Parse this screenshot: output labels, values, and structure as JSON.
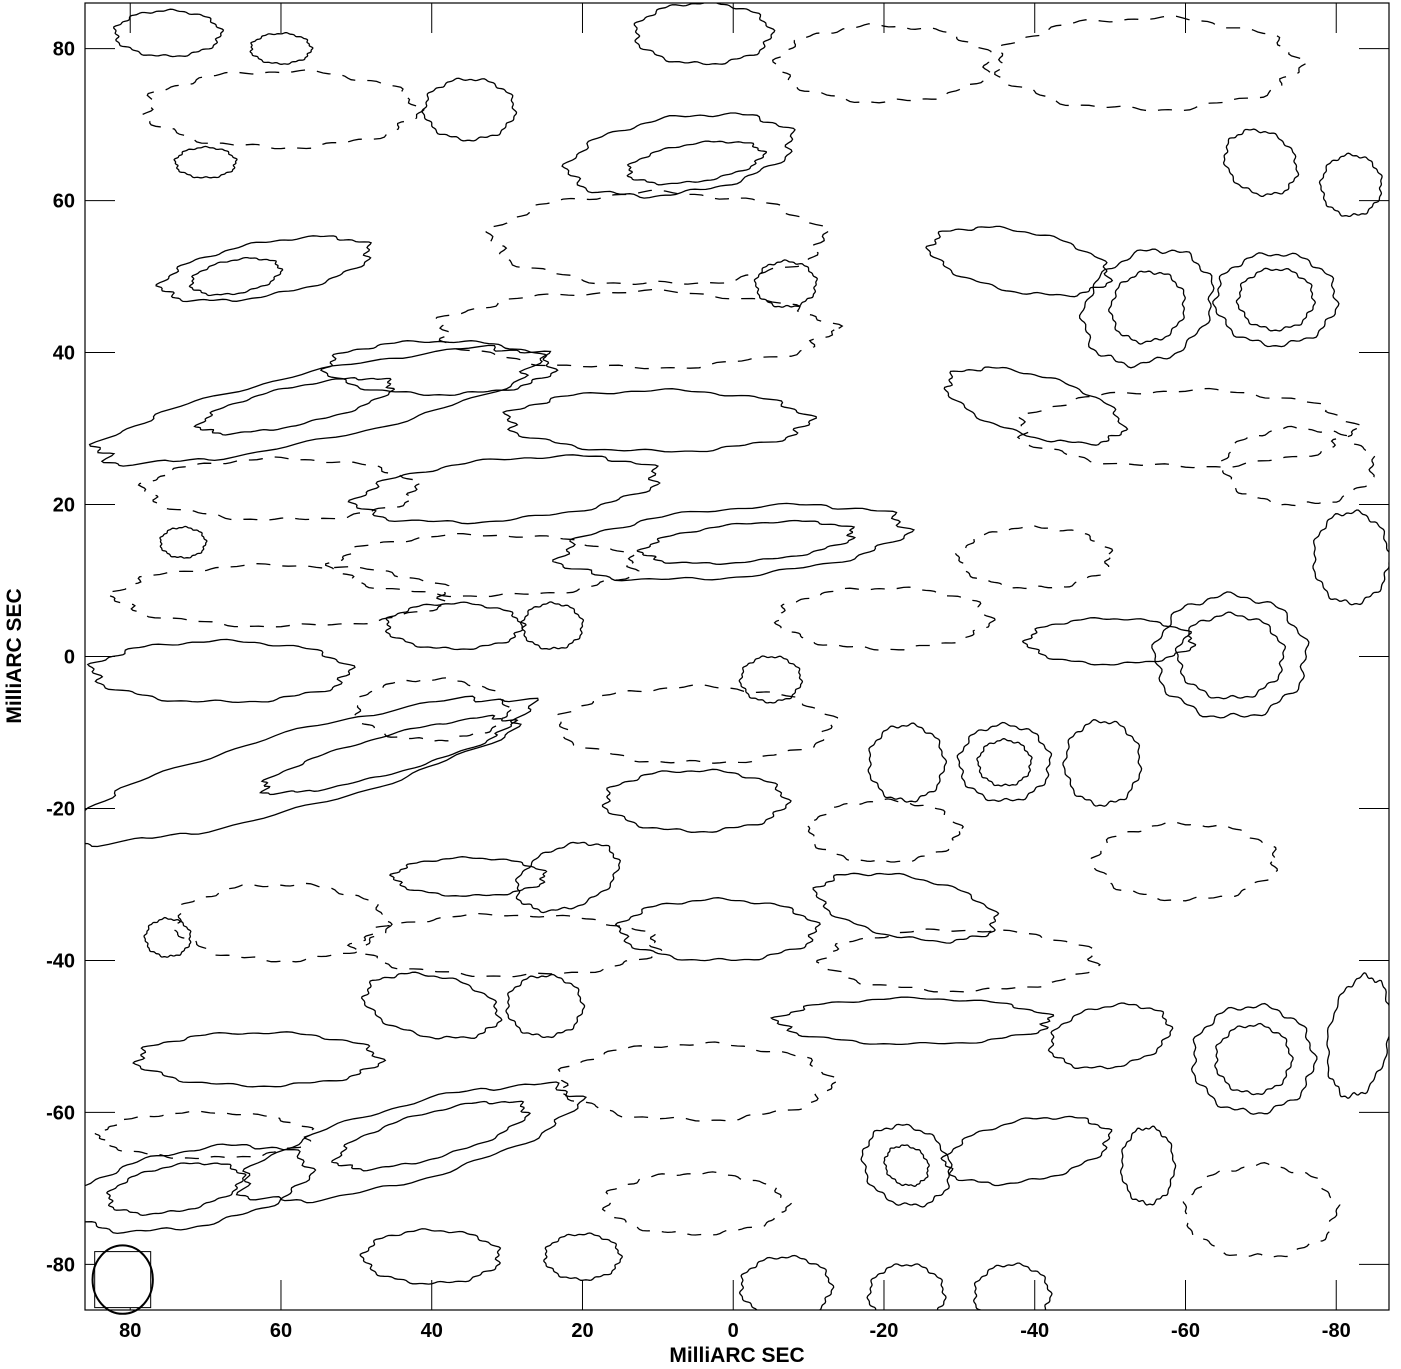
{
  "chart_data": {
    "type": "contour",
    "title": "",
    "xlabel": "MilliARC SEC",
    "ylabel": "MilliARC SEC",
    "xlim": [
      86,
      -87
    ],
    "ylim": [
      -86,
      86
    ],
    "x_reversed": true,
    "xticks": [
      80,
      60,
      40,
      20,
      0,
      -20,
      -40,
      -60,
      -80
    ],
    "yticks": [
      80,
      60,
      40,
      20,
      0,
      -20,
      -40,
      -60,
      -80
    ],
    "line_color": "#000000",
    "negative_contours_dashed": true,
    "beam": {
      "x": 81,
      "y": -82,
      "major": 4.5,
      "minor": 4.0,
      "pa_deg": 0
    },
    "contours": [
      {
        "level": "positive_low",
        "cx": 62,
        "cy": 51,
        "rx": 14,
        "ry": 3.5,
        "rot": -10
      },
      {
        "level": "positive_high",
        "cx": 66,
        "cy": 50,
        "rx": 6,
        "ry": 2.2,
        "rot": -10
      },
      {
        "level": "positive_low",
        "cx": 55,
        "cy": 33,
        "rx": 30,
        "ry": 4.5,
        "rot": -12
      },
      {
        "level": "positive_high",
        "cx": 58,
        "cy": 33,
        "rx": 13,
        "ry": 2.5,
        "rot": -12
      },
      {
        "level": "positive_low",
        "cx": 39,
        "cy": 38,
        "rx": 15,
        "ry": 3.5,
        "rot": 0
      },
      {
        "level": "positive_low",
        "cx": 75,
        "cy": 82,
        "rx": 7,
        "ry": 3,
        "rot": 0
      },
      {
        "level": "positive_low",
        "cx": 35,
        "cy": 72,
        "rx": 6,
        "ry": 4,
        "rot": 0
      },
      {
        "level": "positive_low",
        "cx": 70,
        "cy": 65,
        "rx": 4,
        "ry": 2,
        "rot": 0
      },
      {
        "level": "positive_low",
        "cx": 7,
        "cy": 66,
        "rx": 15,
        "ry": 5,
        "rot": -8
      },
      {
        "level": "positive_high",
        "cx": 5,
        "cy": 65,
        "rx": 9,
        "ry": 2.5,
        "rot": -8
      },
      {
        "level": "positive_low",
        "cx": 4,
        "cy": 82,
        "rx": 9,
        "ry": 4,
        "rot": 0
      },
      {
        "level": "positive_low",
        "cx": -7,
        "cy": 49,
        "rx": 4,
        "ry": 3,
        "rot": 0
      },
      {
        "level": "positive_low",
        "cx": 10,
        "cy": 31,
        "rx": 20,
        "ry": 4,
        "rot": 0
      },
      {
        "level": "positive_low",
        "cx": 30,
        "cy": 22,
        "rx": 20,
        "ry": 4,
        "rot": -5
      },
      {
        "level": "positive_low",
        "cx": 0,
        "cy": 15,
        "rx": 23,
        "ry": 4.5,
        "rot": -5
      },
      {
        "level": "positive_high",
        "cx": -2,
        "cy": 15,
        "rx": 14,
        "ry": 2.5,
        "rot": -5
      },
      {
        "level": "positive_low",
        "cx": 37,
        "cy": 4,
        "rx": 9,
        "ry": 3,
        "rot": 0
      },
      {
        "level": "positive_low",
        "cx": 24,
        "cy": 4,
        "rx": 4,
        "ry": 3,
        "rot": 0
      },
      {
        "level": "positive_low",
        "cx": 68,
        "cy": -2,
        "rx": 17,
        "ry": 4,
        "rot": 0
      },
      {
        "level": "positive_low",
        "cx": 58,
        "cy": -15,
        "rx": 32,
        "ry": 5,
        "rot": -15
      },
      {
        "level": "positive_high",
        "cx": 46,
        "cy": -13,
        "rx": 17,
        "ry": 2.5,
        "rot": -15
      },
      {
        "level": "positive_low",
        "cx": 5,
        "cy": -19,
        "rx": 12,
        "ry": 4,
        "rot": 0
      },
      {
        "level": "positive_low",
        "cx": -5,
        "cy": -3,
        "rx": 4,
        "ry": 3,
        "rot": 0
      },
      {
        "level": "positive_low",
        "cx": -23,
        "cy": -14,
        "rx": 5,
        "ry": 5,
        "rot": 0
      },
      {
        "level": "positive_low",
        "cx": -36,
        "cy": -14,
        "rx": 6,
        "ry": 5,
        "rot": 0
      },
      {
        "level": "positive_high",
        "cx": -36,
        "cy": -14,
        "rx": 3.5,
        "ry": 3,
        "rot": 0
      },
      {
        "level": "positive_low",
        "cx": -49,
        "cy": -14,
        "rx": 5,
        "ry": 5.5,
        "rot": 0
      },
      {
        "level": "positive_low",
        "cx": -66,
        "cy": 0,
        "rx": 10,
        "ry": 8,
        "rot": 0
      },
      {
        "level": "positive_high",
        "cx": -66,
        "cy": 0,
        "rx": 7,
        "ry": 5.5,
        "rot": 0
      },
      {
        "level": "positive_low",
        "cx": -50,
        "cy": 2,
        "rx": 11,
        "ry": 3,
        "rot": 0
      },
      {
        "level": "positive_low",
        "cx": -82,
        "cy": 13,
        "rx": 5,
        "ry": 6,
        "rot": 0
      },
      {
        "level": "positive_low",
        "cx": -38,
        "cy": 52,
        "rx": 12,
        "ry": 4,
        "rot": 10
      },
      {
        "level": "positive_low",
        "cx": -55,
        "cy": 46,
        "rx": 9,
        "ry": 7,
        "rot": -30
      },
      {
        "level": "positive_high",
        "cx": -55,
        "cy": 46,
        "rx": 5,
        "ry": 4.5,
        "rot": -30
      },
      {
        "level": "positive_low",
        "cx": -72,
        "cy": 47,
        "rx": 8,
        "ry": 6,
        "rot": 0
      },
      {
        "level": "positive_high",
        "cx": -72,
        "cy": 47,
        "rx": 5,
        "ry": 4,
        "rot": 0
      },
      {
        "level": "positive_low",
        "cx": -70,
        "cy": 65,
        "rx": 5,
        "ry": 4,
        "rot": 30
      },
      {
        "level": "positive_low",
        "cx": -40,
        "cy": 33,
        "rx": 12,
        "ry": 4,
        "rot": 15
      },
      {
        "level": "positive_low",
        "cx": 35,
        "cy": -29,
        "rx": 10,
        "ry": 2.5,
        "rot": 0
      },
      {
        "level": "positive_low",
        "cx": 22,
        "cy": -29,
        "rx": 7,
        "ry": 4,
        "rot": -20
      },
      {
        "level": "positive_low",
        "cx": 2,
        "cy": -36,
        "rx": 13,
        "ry": 4,
        "rot": 0
      },
      {
        "level": "positive_low",
        "cx": -23,
        "cy": -33,
        "rx": 12,
        "ry": 4,
        "rot": 10
      },
      {
        "level": "positive_low",
        "cx": 40,
        "cy": -46,
        "rx": 9,
        "ry": 4,
        "rot": 10
      },
      {
        "level": "positive_low",
        "cx": 25,
        "cy": -46,
        "rx": 5,
        "ry": 4,
        "rot": 0
      },
      {
        "level": "positive_low",
        "cx": 63,
        "cy": -53,
        "rx": 16,
        "ry": 3.5,
        "rot": 0
      },
      {
        "level": "positive_low",
        "cx": 72,
        "cy": -70,
        "rx": 16,
        "ry": 5,
        "rot": -10
      },
      {
        "level": "positive_high",
        "cx": 74,
        "cy": -70,
        "rx": 9,
        "ry": 3,
        "rot": -10
      },
      {
        "level": "positive_low",
        "cx": 43,
        "cy": -64,
        "rx": 23,
        "ry": 5,
        "rot": -15
      },
      {
        "level": "positive_high",
        "cx": 40,
        "cy": -63,
        "rx": 13,
        "ry": 3,
        "rot": -15
      },
      {
        "level": "positive_low",
        "cx": -24,
        "cy": -48,
        "rx": 18,
        "ry": 3,
        "rot": 0
      },
      {
        "level": "positive_low",
        "cx": -50,
        "cy": -50,
        "rx": 8,
        "ry": 4,
        "rot": -10
      },
      {
        "level": "positive_low",
        "cx": -69,
        "cy": -53,
        "rx": 8,
        "ry": 7,
        "rot": 0
      },
      {
        "level": "positive_high",
        "cx": -69,
        "cy": -53,
        "rx": 5,
        "ry": 4.5,
        "rot": 0
      },
      {
        "level": "positive_low",
        "cx": -83,
        "cy": -50,
        "rx": 4,
        "ry": 8,
        "rot": 10
      },
      {
        "level": "positive_low",
        "cx": -23,
        "cy": -67,
        "rx": 6,
        "ry": 5,
        "rot": 30
      },
      {
        "level": "positive_high",
        "cx": -23,
        "cy": -67,
        "rx": 3,
        "ry": 2.5,
        "rot": 30
      },
      {
        "level": "positive_low",
        "cx": -39,
        "cy": -65,
        "rx": 11,
        "ry": 4,
        "rot": -10
      },
      {
        "level": "positive_low",
        "cx": -55,
        "cy": -67,
        "rx": 3.5,
        "ry": 5,
        "rot": 0
      },
      {
        "level": "positive_low",
        "cx": 40,
        "cy": -79,
        "rx": 9,
        "ry": 3.5,
        "rot": 0
      },
      {
        "level": "positive_low",
        "cx": 20,
        "cy": -79,
        "rx": 5,
        "ry": 3,
        "rot": 0
      },
      {
        "level": "positive_low",
        "cx": -7,
        "cy": -83,
        "rx": 6,
        "ry": 4,
        "rot": 0
      },
      {
        "level": "positive_low",
        "cx": -23,
        "cy": -84,
        "rx": 5,
        "ry": 4,
        "rot": 0
      },
      {
        "level": "positive_low",
        "cx": -37,
        "cy": -84,
        "rx": 5,
        "ry": 4,
        "rot": 0
      },
      {
        "level": "positive_low",
        "cx": 75,
        "cy": -37,
        "rx": 3,
        "ry": 2.5,
        "rot": 0
      },
      {
        "level": "positive_low",
        "cx": 73,
        "cy": 15,
        "rx": 3,
        "ry": 2,
        "rot": 0
      },
      {
        "level": "positive_low",
        "cx": 60,
        "cy": 80,
        "rx": 4,
        "ry": 2,
        "rot": 0
      },
      {
        "level": "positive_low",
        "cx": -82,
        "cy": 62,
        "rx": 4,
        "ry": 4,
        "rot": 0
      },
      {
        "level": "negative",
        "cx": 60,
        "cy": 72,
        "rx": 18,
        "ry": 5,
        "rot": 0
      },
      {
        "level": "negative",
        "cx": 10,
        "cy": 55,
        "rx": 22,
        "ry": 6,
        "rot": 0
      },
      {
        "level": "negative",
        "cx": 13,
        "cy": 43,
        "rx": 26,
        "ry": 5,
        "rot": 0
      },
      {
        "level": "negative",
        "cx": 60,
        "cy": 22,
        "rx": 18,
        "ry": 4,
        "rot": 0
      },
      {
        "level": "negative",
        "cx": 60,
        "cy": 8,
        "rx": 22,
        "ry": 4,
        "rot": 0
      },
      {
        "level": "negative",
        "cx": 33,
        "cy": 12,
        "rx": 20,
        "ry": 4,
        "rot": 0
      },
      {
        "level": "negative",
        "cx": 5,
        "cy": -9,
        "rx": 18,
        "ry": 5,
        "rot": 0
      },
      {
        "level": "negative",
        "cx": 40,
        "cy": -7,
        "rx": 10,
        "ry": 4,
        "rot": 0
      },
      {
        "level": "negative",
        "cx": -20,
        "cy": 5,
        "rx": 14,
        "ry": 4,
        "rot": 0
      },
      {
        "level": "negative",
        "cx": -20,
        "cy": -23,
        "rx": 10,
        "ry": 4,
        "rot": 0
      },
      {
        "level": "negative",
        "cx": 60,
        "cy": -35,
        "rx": 14,
        "ry": 5,
        "rot": 0
      },
      {
        "level": "negative",
        "cx": 30,
        "cy": -38,
        "rx": 20,
        "ry": 4,
        "rot": 0
      },
      {
        "level": "negative",
        "cx": 5,
        "cy": -56,
        "rx": 18,
        "ry": 5,
        "rot": 0
      },
      {
        "level": "negative",
        "cx": -30,
        "cy": -40,
        "rx": 18,
        "ry": 4,
        "rot": 0
      },
      {
        "level": "negative",
        "cx": -60,
        "cy": -27,
        "rx": 12,
        "ry": 5,
        "rot": 0
      },
      {
        "level": "negative",
        "cx": -60,
        "cy": 30,
        "rx": 22,
        "ry": 5,
        "rot": 0
      },
      {
        "level": "negative",
        "cx": -55,
        "cy": 78,
        "rx": 20,
        "ry": 6,
        "rot": 0
      },
      {
        "level": "negative",
        "cx": -20,
        "cy": 78,
        "rx": 14,
        "ry": 5,
        "rot": 0
      },
      {
        "level": "negative",
        "cx": 70,
        "cy": -63,
        "rx": 14,
        "ry": 3,
        "rot": 0
      },
      {
        "level": "negative",
        "cx": -70,
        "cy": -73,
        "rx": 10,
        "ry": 6,
        "rot": 0
      },
      {
        "level": "negative",
        "cx": 5,
        "cy": -72,
        "rx": 12,
        "ry": 4,
        "rot": 0
      },
      {
        "level": "negative",
        "cx": -40,
        "cy": 13,
        "rx": 10,
        "ry": 4,
        "rot": 0
      },
      {
        "level": "negative",
        "cx": -75,
        "cy": 25,
        "rx": 10,
        "ry": 5,
        "rot": 0
      }
    ]
  }
}
